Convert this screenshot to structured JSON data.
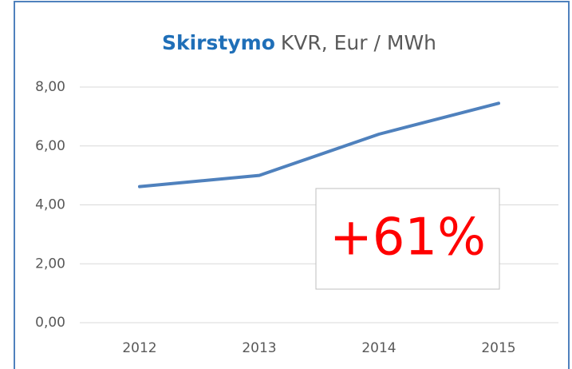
{
  "chart_data": {
    "type": "line",
    "title": {
      "emphasis": "Skirstymo",
      "text": "KVR, Eur / MWh"
    },
    "categories": [
      "2012",
      "2013",
      "2014",
      "2015"
    ],
    "values": [
      4.62,
      5.0,
      6.4,
      7.45
    ],
    "color": "#4f81bd",
    "ylim": [
      0,
      8
    ],
    "yticks": [
      {
        "value": 0,
        "label": "0,00"
      },
      {
        "value": 2,
        "label": "2,00"
      },
      {
        "value": 4,
        "label": "4,00"
      },
      {
        "value": 6,
        "label": "6,00"
      },
      {
        "value": 8,
        "label": "8,00"
      }
    ],
    "grid": true,
    "annotation": "+61%"
  }
}
